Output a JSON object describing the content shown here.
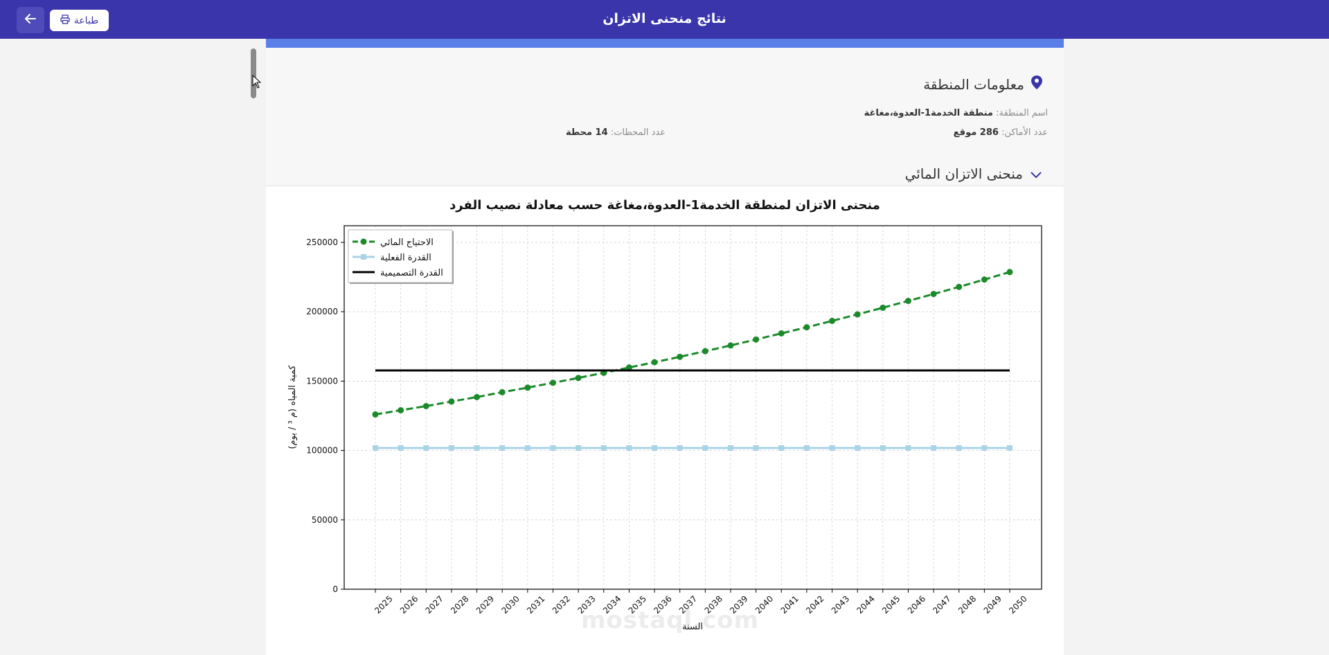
{
  "header": {
    "title": "نتائج منحنى الاتزان",
    "print_label": "طباعة"
  },
  "region_info": {
    "heading": "معلومات المنطقة",
    "name_label": "اسم المنطقة:",
    "name_value": "منطقة الخدمة1-العدوة،مغاغة",
    "places_label": "عدد الأماكن:",
    "places_value": "286 موقع",
    "stations_label": "عدد المحطات:",
    "stations_value": "14 محطة"
  },
  "balance_section": {
    "heading": "منحنى الاتزان المائي"
  },
  "watermark": "mostaql.com",
  "colors": {
    "header_bg": "#3a35aa",
    "accent": "#5a7fe8",
    "demand": "#1a8a2a",
    "actual": "#a9d3e6",
    "design": "#000000"
  },
  "chart_data": {
    "type": "line",
    "title": "منحنى الاتزان لمنطقة الخدمة1-العدوة،مغاغة حسب معادلة نصيب الفرد",
    "xlabel": "السنة",
    "ylabel": "كمية المياه (م ³ / يوم)",
    "ylim": [
      0,
      262000
    ],
    "yticks": [
      0,
      50000,
      100000,
      150000,
      200000,
      250000
    ],
    "grid": true,
    "legend_position": "top-left",
    "x": [
      2025,
      2026,
      2027,
      2028,
      2029,
      2030,
      2031,
      2032,
      2033,
      2034,
      2035,
      2036,
      2037,
      2038,
      2039,
      2040,
      2041,
      2042,
      2043,
      2044,
      2045,
      2046,
      2047,
      2048,
      2049,
      2050
    ],
    "series": [
      {
        "name": "الاحتياج المائي",
        "style": "dashed-circle",
        "color": "#1a8a2a",
        "values": [
          126000,
          129000,
          132000,
          135300,
          138500,
          142000,
          145300,
          148800,
          152300,
          156000,
          159800,
          163600,
          167500,
          171600,
          175700,
          180000,
          184400,
          188800,
          193400,
          198100,
          202900,
          207800,
          212800,
          217900,
          223200,
          228600
        ]
      },
      {
        "name": "القدرة الفعلية",
        "style": "solid-square",
        "color": "#a9d3e6",
        "values": [
          101800,
          101800,
          101800,
          101800,
          101800,
          101800,
          101800,
          101800,
          101800,
          101800,
          101800,
          101800,
          101800,
          101800,
          101800,
          101800,
          101800,
          101800,
          101800,
          101800,
          101800,
          101800,
          101800,
          101800,
          101800,
          101800
        ]
      },
      {
        "name": "القدرة التصميمية",
        "style": "solid",
        "color": "#000000",
        "values": [
          157700,
          157700,
          157700,
          157700,
          157700,
          157700,
          157700,
          157700,
          157700,
          157700,
          157700,
          157700,
          157700,
          157700,
          157700,
          157700,
          157700,
          157700,
          157700,
          157700,
          157700,
          157700,
          157700,
          157700,
          157700,
          157700
        ]
      }
    ]
  }
}
